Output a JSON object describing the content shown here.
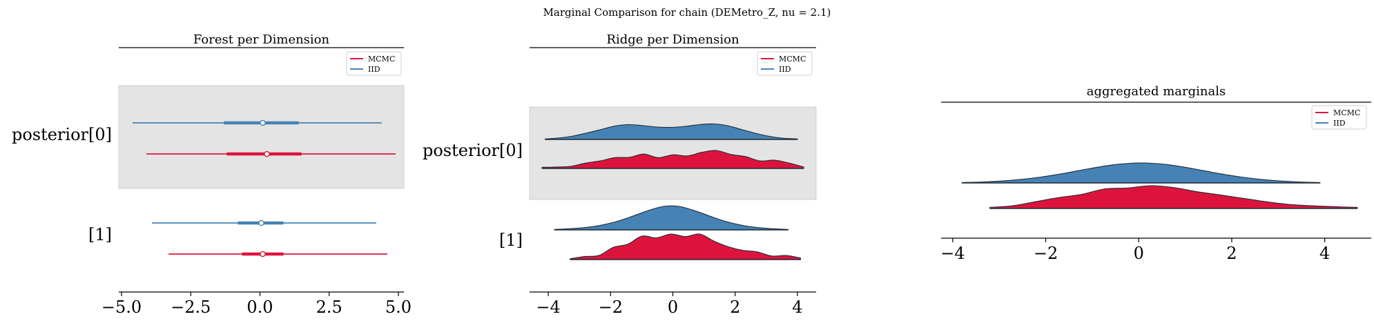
{
  "figure": {
    "title": "Marginal Comparison for chain (DEMetro_Z, nu = 2.1)"
  },
  "colors": {
    "mcmc": "#dc143c",
    "iid": "#4682b4",
    "band": "#e4e4e4",
    "axis": "#000000",
    "outline": "#1f2a36"
  },
  "legend": {
    "entries": [
      {
        "name": "MCMC",
        "color": "#dc143c"
      },
      {
        "name": "IID",
        "color": "#4682b4"
      }
    ]
  },
  "chart_data": [
    {
      "type": "forest",
      "title": "Forest per Dimension",
      "legend_position": "top-right",
      "xlim": [
        -5.1,
        5.2
      ],
      "xticks": [
        -5.0,
        -2.5,
        0.0,
        2.5,
        5.0
      ],
      "xtick_labels": [
        "−5.0",
        "−2.5",
        "0.0",
        "2.5",
        "5.0"
      ],
      "rows": [
        {
          "label": "posterior[0]",
          "shaded": true,
          "series": [
            {
              "name": "IID",
              "hdi": [
                -4.6,
                4.4
              ],
              "iqr": [
                -1.3,
                1.4
              ],
              "median": 0.1
            },
            {
              "name": "MCMC",
              "hdi": [
                -4.1,
                4.9
              ],
              "iqr": [
                -1.2,
                1.5
              ],
              "median": 0.25
            }
          ]
        },
        {
          "label": "[1]",
          "shaded": false,
          "series": [
            {
              "name": "IID",
              "hdi": [
                -3.9,
                4.2
              ],
              "iqr": [
                -0.8,
                0.85
              ],
              "median": 0.05
            },
            {
              "name": "MCMC",
              "hdi": [
                -3.3,
                4.6
              ],
              "iqr": [
                -0.65,
                0.85
              ],
              "median": 0.1
            }
          ]
        }
      ]
    },
    {
      "type": "ridge",
      "title": "Ridge per Dimension",
      "legend_position": "top-right",
      "xlim": [
        -4.6,
        4.6
      ],
      "xticks": [
        -4,
        -2,
        0,
        2,
        4
      ],
      "xtick_labels": [
        "−4",
        "−2",
        "0",
        "2",
        "4"
      ],
      "rows": [
        {
          "label": "posterior[0]",
          "shaded": true,
          "series": [
            {
              "name": "IID",
              "range": [
                -4.1,
                4.0
              ],
              "density": [
                0.03,
                0.09,
                0.2,
                0.38,
                0.58,
                0.78,
                0.86,
                0.8,
                0.72,
                0.7,
                0.76,
                0.86,
                0.9,
                0.8,
                0.58,
                0.36,
                0.18,
                0.07,
                0.03
              ]
            },
            {
              "name": "MCMC",
              "range": [
                -4.2,
                4.2
              ],
              "density": [
                0.06,
                0.08,
                0.12,
                0.3,
                0.42,
                0.6,
                0.62,
                0.8,
                0.6,
                0.76,
                0.7,
                0.9,
                1.0,
                0.78,
                0.66,
                0.42,
                0.46,
                0.3,
                0.08
              ]
            }
          ]
        },
        {
          "label": "[1]",
          "shaded": false,
          "series": [
            {
              "name": "IID",
              "range": [
                -3.8,
                3.7
              ],
              "density": [
                0.02,
                0.05,
                0.1,
                0.2,
                0.36,
                0.58,
                0.82,
                1.0,
                1.0,
                0.82,
                0.58,
                0.36,
                0.2,
                0.1,
                0.05,
                0.02
              ]
            },
            {
              "name": "MCMC",
              "range": [
                -3.3,
                4.1
              ],
              "density": [
                0.03,
                0.12,
                0.16,
                0.48,
                0.6,
                0.92,
                0.85,
                1.0,
                0.9,
                1.0,
                0.72,
                0.5,
                0.36,
                0.3,
                0.14,
                0.16,
                0.06
              ]
            }
          ]
        }
      ]
    },
    {
      "type": "ridge",
      "title": "aggregated marginals",
      "legend_position": "top-right",
      "xlim": [
        -4.25,
        5.0
      ],
      "xticks": [
        -4,
        -2,
        0,
        2,
        4
      ],
      "xtick_labels": [
        "−4",
        "−2",
        "0",
        "2",
        "4"
      ],
      "rows": [
        {
          "label": "",
          "shaded": false,
          "series": [
            {
              "name": "IID",
              "range": [
                -3.8,
                3.9
              ],
              "density": [
                0.02,
                0.06,
                0.14,
                0.28,
                0.48,
                0.72,
                0.92,
                1.0,
                0.92,
                0.72,
                0.48,
                0.28,
                0.14,
                0.06,
                0.02
              ]
            },
            {
              "name": "MCMC",
              "range": [
                -3.2,
                4.7
              ],
              "density": [
                0.05,
                0.12,
                0.3,
                0.48,
                0.62,
                0.86,
                0.9,
                1.0,
                0.92,
                0.74,
                0.6,
                0.45,
                0.3,
                0.18,
                0.12,
                0.08,
                0.05
              ]
            }
          ]
        }
      ]
    }
  ]
}
